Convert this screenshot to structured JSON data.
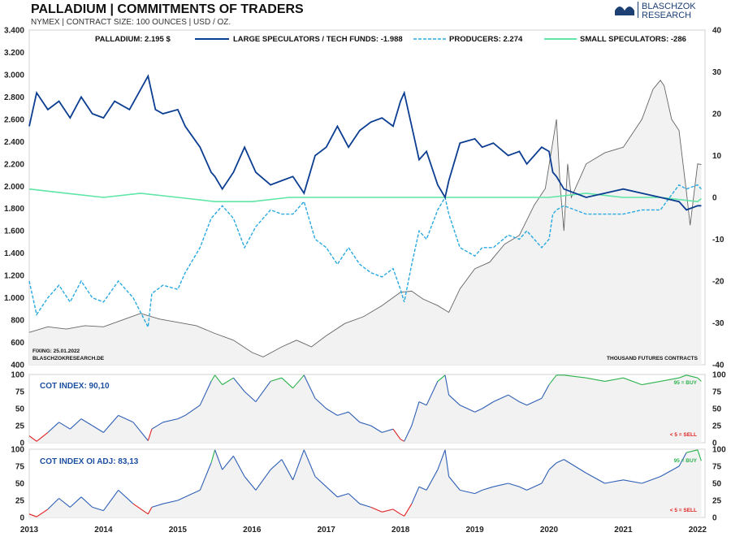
{
  "header": {
    "title": "PALLADIUM | COMMITMENTS OF TRADERS",
    "subtitle": "NYMEX | CONTRACT SIZE: 100 OUNCES | USD / OZ.",
    "logo_line1": "BLASCHZOK",
    "logo_line2": "RESEARCH"
  },
  "main_panel": {
    "fixing": "FIXING: 25.01.2022",
    "source": "BLASCHZOKRESEARCH.DE",
    "unit_note": "THOUSAND FUTURES CONTRACTS"
  },
  "cot_panel": {
    "label": "COT INDEX: 90,10",
    "buy_note": "95 = BUY",
    "sell_note": "< 5 = SELL"
  },
  "cot_adj_panel": {
    "label": "COT INDEX OI ADJ: 83,13",
    "buy_note": "95 = BUY",
    "sell_note": "< 5 = SELL"
  },
  "colors": {
    "price": "#666666",
    "large_spec": "#0b3d91",
    "producers": "#29a9e0",
    "small_spec": "#5fe6a6",
    "cot_mid": "#2e5fb5",
    "cot_high": "#2bb24c",
    "cot_low": "#e02020"
  },
  "chart_data": [
    {
      "type": "line",
      "title": "PALLADIUM | COMMITMENTS OF TRADERS",
      "x_ticks": [
        "2013",
        "2014",
        "2015",
        "2016",
        "2017",
        "2018",
        "2019",
        "2020",
        "2021",
        "2022"
      ],
      "x_range": [
        2013.0,
        2022.1
      ],
      "y_left": {
        "label": "USD / OZ.",
        "range": [
          400,
          3400
        ],
        "ticks": [
          "3.400",
          "3.200",
          "3.000",
          "2.800",
          "2.600",
          "2.400",
          "2.200",
          "2.000",
          "1.800",
          "1.600",
          "1.400",
          "1.200",
          "1.000",
          "800",
          "600",
          "400"
        ]
      },
      "y_right": {
        "label": "THOUSAND FUTURES CONTRACTS",
        "range": [
          -40,
          40
        ],
        "ticks": [
          "40",
          "30",
          "20",
          "10",
          "0",
          "-10",
          "-20",
          "-30",
          "-40"
        ]
      },
      "series": [
        {
          "name": "PALLADIUM",
          "legend": "PALLADIUM: 2.195 $",
          "axis": "left",
          "style": "solid-gray",
          "x": [
            2013.0,
            2013.25,
            2013.5,
            2013.75,
            2014.0,
            2014.25,
            2014.5,
            2014.75,
            2015.0,
            2015.25,
            2015.5,
            2015.75,
            2016.0,
            2016.15,
            2016.4,
            2016.6,
            2016.8,
            2017.0,
            2017.25,
            2017.5,
            2017.75,
            2018.0,
            2018.15,
            2018.3,
            2018.5,
            2018.65,
            2018.8,
            2019.0,
            2019.2,
            2019.4,
            2019.6,
            2019.8,
            2019.95,
            2020.1,
            2020.15,
            2020.2,
            2020.25,
            2020.3,
            2020.5,
            2020.75,
            2021.0,
            2021.25,
            2021.4,
            2021.5,
            2021.55,
            2021.65,
            2021.75,
            2021.85,
            2021.9,
            2022.0,
            2022.05
          ],
          "y": [
            690,
            740,
            720,
            750,
            740,
            800,
            860,
            810,
            780,
            750,
            680,
            620,
            510,
            470,
            560,
            620,
            560,
            660,
            770,
            830,
            930,
            1050,
            1060,
            990,
            930,
            870,
            1080,
            1260,
            1320,
            1480,
            1560,
            1830,
            1980,
            2600,
            2000,
            1600,
            2200,
            1900,
            2200,
            2300,
            2350,
            2600,
            2870,
            2950,
            2900,
            2600,
            2500,
            1950,
            1650,
            2200,
            2195
          ]
        },
        {
          "name": "LARGE SPECULATORS / TECH FUNDS",
          "legend": "LARGE SPECULATORS / TECH FUNDS: -1.988",
          "axis": "right",
          "style": "solid-navy",
          "x": [
            2013.0,
            2013.1,
            2013.25,
            2013.4,
            2013.55,
            2013.7,
            2013.85,
            2014.0,
            2014.15,
            2014.35,
            2014.6,
            2014.7,
            2014.8,
            2015.0,
            2015.1,
            2015.3,
            2015.45,
            2015.5,
            2015.6,
            2015.75,
            2015.9,
            2016.05,
            2016.25,
            2016.4,
            2016.55,
            2016.7,
            2016.85,
            2017.0,
            2017.15,
            2017.3,
            2017.45,
            2017.6,
            2017.75,
            2017.9,
            2018.0,
            2018.05,
            2018.15,
            2018.25,
            2018.35,
            2018.5,
            2018.6,
            2018.65,
            2018.8,
            2019.0,
            2019.1,
            2019.25,
            2019.45,
            2019.6,
            2019.7,
            2019.9,
            2020.0,
            2020.05,
            2020.1,
            2020.2,
            2020.5,
            2020.75,
            2021.0,
            2021.25,
            2021.5,
            2021.75,
            2021.85,
            2022.0,
            2022.05
          ],
          "y": [
            17,
            25,
            21,
            23,
            19,
            24,
            20,
            19,
            23,
            21,
            29,
            21,
            20,
            21,
            17,
            12,
            6,
            5,
            2,
            6,
            12,
            6,
            3,
            4,
            5,
            1,
            10,
            12,
            17,
            12,
            16,
            18,
            19,
            17,
            23,
            25,
            17,
            9,
            11,
            3,
            0,
            4,
            13,
            14,
            12,
            13,
            10,
            11,
            8,
            12,
            11,
            6,
            5,
            2,
            0,
            1,
            2,
            1,
            0,
            -1,
            -3,
            -2,
            -2
          ]
        },
        {
          "name": "PRODUCERS",
          "legend": "PRODUCERS: 2.274",
          "axis": "right",
          "style": "dashed-cyan",
          "x": [
            2013.0,
            2013.1,
            2013.25,
            2013.4,
            2013.55,
            2013.7,
            2013.85,
            2014.0,
            2014.2,
            2014.4,
            2014.6,
            2014.65,
            2014.8,
            2015.0,
            2015.1,
            2015.3,
            2015.45,
            2015.5,
            2015.6,
            2015.75,
            2015.9,
            2016.05,
            2016.25,
            2016.4,
            2016.55,
            2016.7,
            2016.85,
            2017.0,
            2017.15,
            2017.3,
            2017.45,
            2017.6,
            2017.75,
            2017.9,
            2018.0,
            2018.05,
            2018.15,
            2018.25,
            2018.35,
            2018.5,
            2018.6,
            2018.65,
            2018.8,
            2019.0,
            2019.1,
            2019.25,
            2019.45,
            2019.6,
            2019.7,
            2019.9,
            2020.0,
            2020.05,
            2020.1,
            2020.2,
            2020.5,
            2020.75,
            2021.0,
            2021.25,
            2021.5,
            2021.75,
            2021.85,
            2022.0,
            2022.05
          ],
          "y": [
            -20,
            -28,
            -24,
            -21,
            -25,
            -20,
            -24,
            -25,
            -20,
            -24,
            -31,
            -23,
            -21,
            -22,
            -18,
            -12,
            -5,
            -4,
            -2,
            -5,
            -12,
            -7,
            -3,
            -4,
            -4,
            -1,
            -10,
            -12,
            -16,
            -12,
            -16,
            -18,
            -19,
            -17,
            -22,
            -25,
            -16,
            -8,
            -10,
            -3,
            0,
            -4,
            -12,
            -14,
            -12,
            -12,
            -9,
            -10,
            -8,
            -12,
            -10,
            -4,
            -3,
            -2,
            -4,
            -4,
            -4,
            -3,
            -3,
            3,
            2,
            3,
            2
          ]
        },
        {
          "name": "SMALL SPECULATORS",
          "legend": "SMALL SPECULATORS: -286",
          "axis": "right",
          "style": "solid-green",
          "x": [
            2013.0,
            2013.5,
            2014.0,
            2014.5,
            2015.0,
            2015.5,
            2016.0,
            2016.5,
            2017.0,
            2017.5,
            2018.0,
            2018.5,
            2019.0,
            2019.5,
            2020.0,
            2020.5,
            2021.0,
            2021.5,
            2022.0,
            2022.05
          ],
          "y": [
            2,
            1,
            0,
            1,
            0,
            -1,
            -1,
            0,
            0,
            0,
            0,
            0,
            0,
            0,
            0,
            1,
            0,
            0,
            -1,
            -0.3
          ]
        }
      ]
    },
    {
      "type": "line",
      "title": "COT INDEX: 90,10",
      "y_range": [
        0,
        100
      ],
      "y_ticks": [
        "100",
        "75",
        "50",
        "25",
        "0"
      ],
      "thresholds": {
        "buy": 95,
        "sell": 5
      },
      "x": [
        2013.0,
        2013.1,
        2013.25,
        2013.4,
        2013.55,
        2013.7,
        2013.85,
        2014.0,
        2014.2,
        2014.4,
        2014.6,
        2014.65,
        2014.8,
        2015.0,
        2015.1,
        2015.3,
        2015.45,
        2015.5,
        2015.6,
        2015.75,
        2015.9,
        2016.05,
        2016.25,
        2016.4,
        2016.55,
        2016.7,
        2016.85,
        2017.0,
        2017.15,
        2017.3,
        2017.45,
        2017.6,
        2017.75,
        2017.9,
        2018.0,
        2018.05,
        2018.15,
        2018.25,
        2018.35,
        2018.5,
        2018.6,
        2018.65,
        2018.8,
        2019.0,
        2019.1,
        2019.25,
        2019.45,
        2019.6,
        2019.7,
        2019.9,
        2020.0,
        2020.1,
        2020.2,
        2020.5,
        2020.75,
        2021.0,
        2021.25,
        2021.5,
        2021.75,
        2021.85,
        2022.0,
        2022.05
      ],
      "values": [
        10,
        2,
        15,
        30,
        20,
        35,
        25,
        15,
        40,
        30,
        3,
        20,
        30,
        35,
        40,
        55,
        90,
        99,
        85,
        95,
        75,
        60,
        90,
        95,
        80,
        99,
        65,
        50,
        40,
        45,
        30,
        25,
        15,
        20,
        5,
        2,
        25,
        60,
        55,
        90,
        99,
        70,
        55,
        45,
        50,
        60,
        70,
        60,
        55,
        65,
        85,
        99,
        99,
        95,
        90,
        95,
        85,
        90,
        95,
        99,
        95,
        90
      ]
    },
    {
      "type": "line",
      "title": "COT INDEX OI ADJ: 83,13",
      "y_range": [
        0,
        100
      ],
      "y_ticks": [
        "100",
        "75",
        "50",
        "25",
        "0"
      ],
      "thresholds": {
        "buy": 95,
        "sell": 5
      },
      "x": [
        2013.0,
        2013.1,
        2013.25,
        2013.4,
        2013.55,
        2013.7,
        2013.85,
        2014.0,
        2014.2,
        2014.4,
        2014.6,
        2014.65,
        2014.8,
        2015.0,
        2015.1,
        2015.3,
        2015.45,
        2015.5,
        2015.6,
        2015.75,
        2015.9,
        2016.05,
        2016.25,
        2016.4,
        2016.55,
        2016.7,
        2016.85,
        2017.0,
        2017.15,
        2017.3,
        2017.45,
        2017.6,
        2017.75,
        2017.9,
        2018.0,
        2018.05,
        2018.15,
        2018.25,
        2018.35,
        2018.5,
        2018.6,
        2018.65,
        2018.8,
        2019.0,
        2019.1,
        2019.25,
        2019.45,
        2019.6,
        2019.7,
        2019.9,
        2020.0,
        2020.1,
        2020.2,
        2020.5,
        2020.75,
        2021.0,
        2021.25,
        2021.5,
        2021.75,
        2021.85,
        2022.0,
        2022.05
      ],
      "values": [
        5,
        1,
        12,
        28,
        15,
        30,
        15,
        10,
        40,
        20,
        5,
        15,
        20,
        25,
        30,
        40,
        80,
        99,
        70,
        90,
        60,
        40,
        70,
        85,
        55,
        99,
        60,
        45,
        30,
        35,
        20,
        15,
        8,
        12,
        5,
        2,
        20,
        45,
        40,
        70,
        99,
        60,
        40,
        35,
        40,
        45,
        50,
        45,
        40,
        50,
        70,
        80,
        85,
        65,
        50,
        55,
        50,
        60,
        75,
        95,
        99,
        83
      ]
    }
  ]
}
